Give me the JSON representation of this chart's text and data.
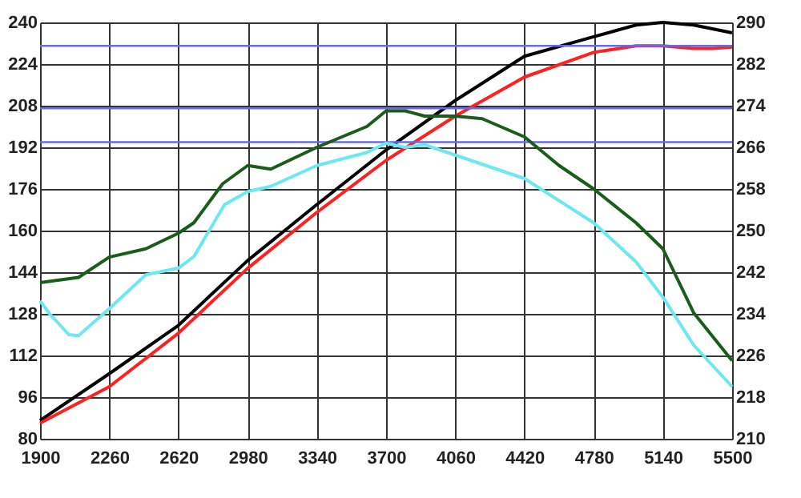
{
  "chart_data": {
    "type": "line",
    "x": [
      1900,
      2100,
      2260,
      2450,
      2620,
      2700,
      2850,
      2980,
      3100,
      3340,
      3600,
      3700,
      3800,
      3900,
      4060,
      4200,
      4420,
      4600,
      4780,
      5000,
      5140,
      5300,
      5500
    ],
    "xlim": [
      1900,
      5500
    ],
    "xticks": [
      1900,
      2260,
      2620,
      2980,
      3340,
      3700,
      4060,
      4420,
      4780,
      5140,
      5500
    ],
    "ylim": [
      80,
      240
    ],
    "yticks": [
      80,
      96,
      112,
      128,
      144,
      160,
      176,
      192,
      208,
      224,
      240
    ],
    "y2lim": [
      210,
      290
    ],
    "y2ticks": [
      210,
      218,
      226,
      234,
      242,
      250,
      258,
      266,
      274,
      282,
      290
    ],
    "grid": true,
    "legend": false,
    "line_style": "solid",
    "marker": "none",
    "series": [
      {
        "color": "#000000",
        "x": [
          1900,
          2260,
          2620,
          2980,
          3340,
          3700,
          4060,
          4420,
          4780,
          5000,
          5140,
          5300,
          5500
        ],
        "values": [
          87,
          105,
          123.6,
          148.5,
          170,
          191,
          210,
          227,
          234.5,
          239,
          240,
          239,
          236
        ]
      },
      {
        "color": "#ff2020",
        "x": [
          1900,
          2260,
          2620,
          2980,
          3340,
          3700,
          4060,
          4420,
          4780,
          5000,
          5140,
          5300,
          5400,
          5500
        ],
        "values": [
          86,
          100,
          120.6,
          145.5,
          167,
          187,
          204,
          219,
          228.5,
          231,
          231,
          230,
          230,
          230.5
        ]
      },
      {
        "color": "#1a5c1a",
        "axis": "y2",
        "values": [
          240,
          241,
          244.9,
          246.5,
          249.5,
          251.5,
          259,
          262.5,
          261.8,
          266,
          270,
          273,
          273,
          272,
          272,
          271.5,
          268,
          262.5,
          258,
          251.5,
          246.5,
          234.2,
          225
        ]
      },
      {
        "color": "#6ee8f0",
        "axis": "y2",
        "x": [
          1900,
          1950,
          2050,
          2100,
          2260,
          2450,
          2620,
          2700,
          2860,
          2980,
          3100,
          3340,
          3600,
          3700,
          3800,
          3900,
          4060,
          4420,
          4780,
          5000,
          5140,
          5300,
          5500
        ],
        "values": [
          236.5,
          234,
          230,
          229.8,
          235,
          241.5,
          242.8,
          245,
          255,
          257.5,
          258.5,
          262.5,
          265,
          266.8,
          266,
          266.5,
          264.5,
          260,
          251.5,
          244,
          237.2,
          228,
          220
        ]
      }
    ],
    "ref_lines": [
      {
        "axis": "y",
        "value": 231,
        "color": "#6a6ae8"
      },
      {
        "axis": "y",
        "value": 207,
        "color": "#6a6ae8"
      },
      {
        "axis": "y",
        "value": 194,
        "color": "#6a6ae8"
      }
    ]
  }
}
